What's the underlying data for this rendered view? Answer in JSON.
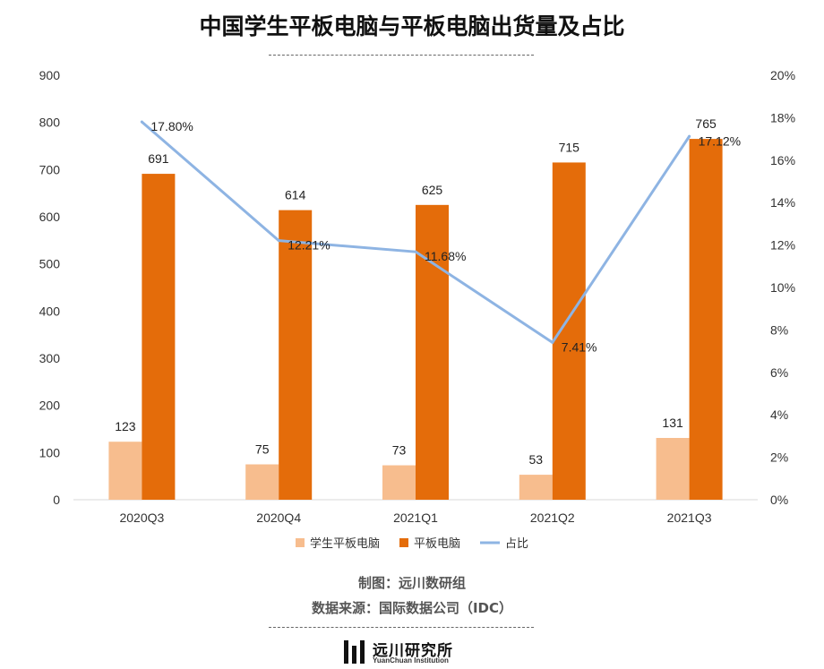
{
  "title": "中国学生平板电脑与平板电脑出货量及占比",
  "credits": {
    "made_by": "制图：远川数研组",
    "source": "数据来源：国际数据公司（IDC）"
  },
  "logo": {
    "name": "远川研究所",
    "sub": "YuanChuan Institution"
  },
  "chart_data": {
    "type": "bar",
    "categories": [
      "2020Q3",
      "2020Q4",
      "2021Q1",
      "2021Q2",
      "2021Q3"
    ],
    "series": [
      {
        "name": "学生平板电脑",
        "type": "bar",
        "axis": "left",
        "color": "#f7bd8e",
        "values": [
          123,
          75,
          73,
          53,
          131
        ],
        "labels": [
          "123",
          "75",
          "73",
          "53",
          "131"
        ]
      },
      {
        "name": "平板电脑",
        "type": "bar",
        "axis": "left",
        "color": "#e46c0a",
        "values": [
          691,
          614,
          625,
          715,
          765
        ],
        "labels": [
          "691",
          "614",
          "625",
          "715",
          "765"
        ]
      },
      {
        "name": "占比",
        "type": "line",
        "axis": "right",
        "color": "#8eb4e3",
        "values": [
          17.8,
          12.21,
          11.68,
          7.41,
          17.12
        ],
        "labels": [
          "17.80%",
          "12.21%",
          "11.68%",
          "7.41%",
          "17.12%"
        ]
      }
    ],
    "y_left": {
      "min": 0,
      "max": 900,
      "ticks": [
        "0",
        "100",
        "200",
        "300",
        "400",
        "500",
        "600",
        "700",
        "800",
        "900"
      ]
    },
    "y_right": {
      "min": 0,
      "max": 20,
      "ticks": [
        "0%",
        "2%",
        "4%",
        "6%",
        "8%",
        "10%",
        "12%",
        "14%",
        "16%",
        "18%",
        "20%"
      ]
    },
    "grid": false,
    "legend_position": "bottom"
  }
}
